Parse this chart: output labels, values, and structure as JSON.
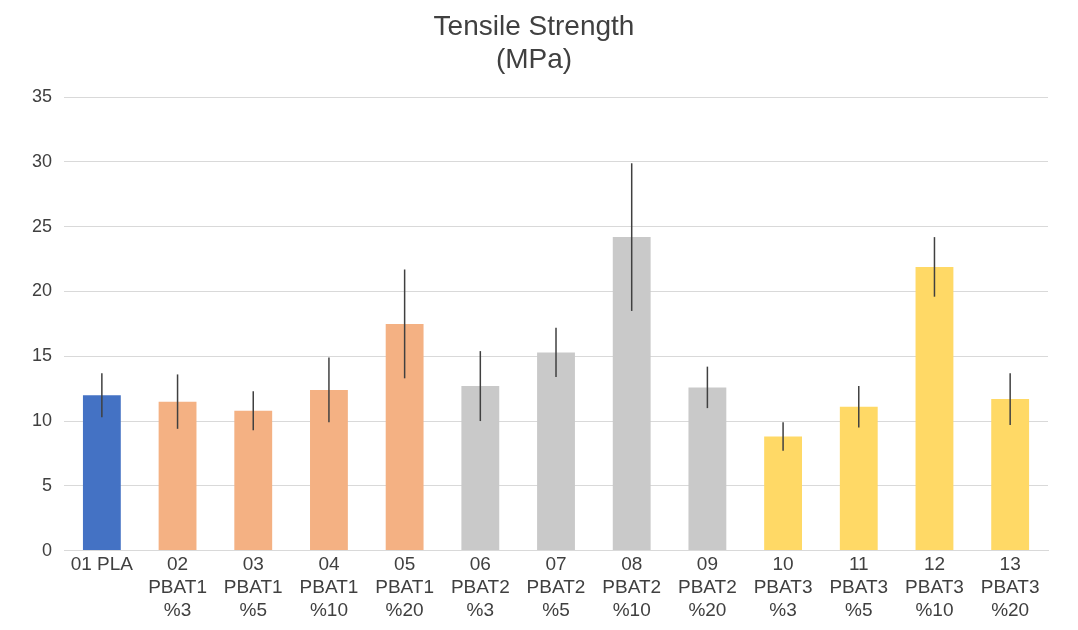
{
  "chart_data": {
    "type": "bar",
    "title": "Tensile Strength\n(MPa)",
    "categories": [
      "01 PLA",
      "02\nPBAT1\n%3",
      "03\nPBAT1\n%5",
      "04\nPBAT1\n%10",
      "05\nPBAT1\n%20",
      "06\nPBAT2\n%3",
      "07\nPBAT2\n%5",
      "08\nPBAT2\n%10",
      "09\nPBAT2\n%20",
      "10\nPBAT3\n%3",
      "11\nPBAT3\n%5",
      "12\nPBAT3\n%10",
      "13\nPBAT3\n%20"
    ],
    "values": [
      12.0,
      11.5,
      10.8,
      12.4,
      17.5,
      12.7,
      15.3,
      24.2,
      12.6,
      8.8,
      11.1,
      21.9,
      11.7
    ],
    "errors": [
      1.7,
      2.1,
      1.5,
      2.5,
      4.2,
      2.7,
      1.9,
      5.7,
      1.6,
      1.1,
      1.6,
      2.3,
      2.0
    ],
    "colors": [
      "#4472c4",
      "#f4b183",
      "#f4b183",
      "#f4b183",
      "#f4b183",
      "#c9c9c9",
      "#c9c9c9",
      "#c9c9c9",
      "#c9c9c9",
      "#ffd966",
      "#ffd966",
      "#ffd966",
      "#ffd966"
    ],
    "ylim": [
      0,
      35
    ],
    "yticks": [
      0,
      5,
      10,
      15,
      20,
      25,
      30,
      35
    ],
    "grid": "y",
    "legend": false
  }
}
